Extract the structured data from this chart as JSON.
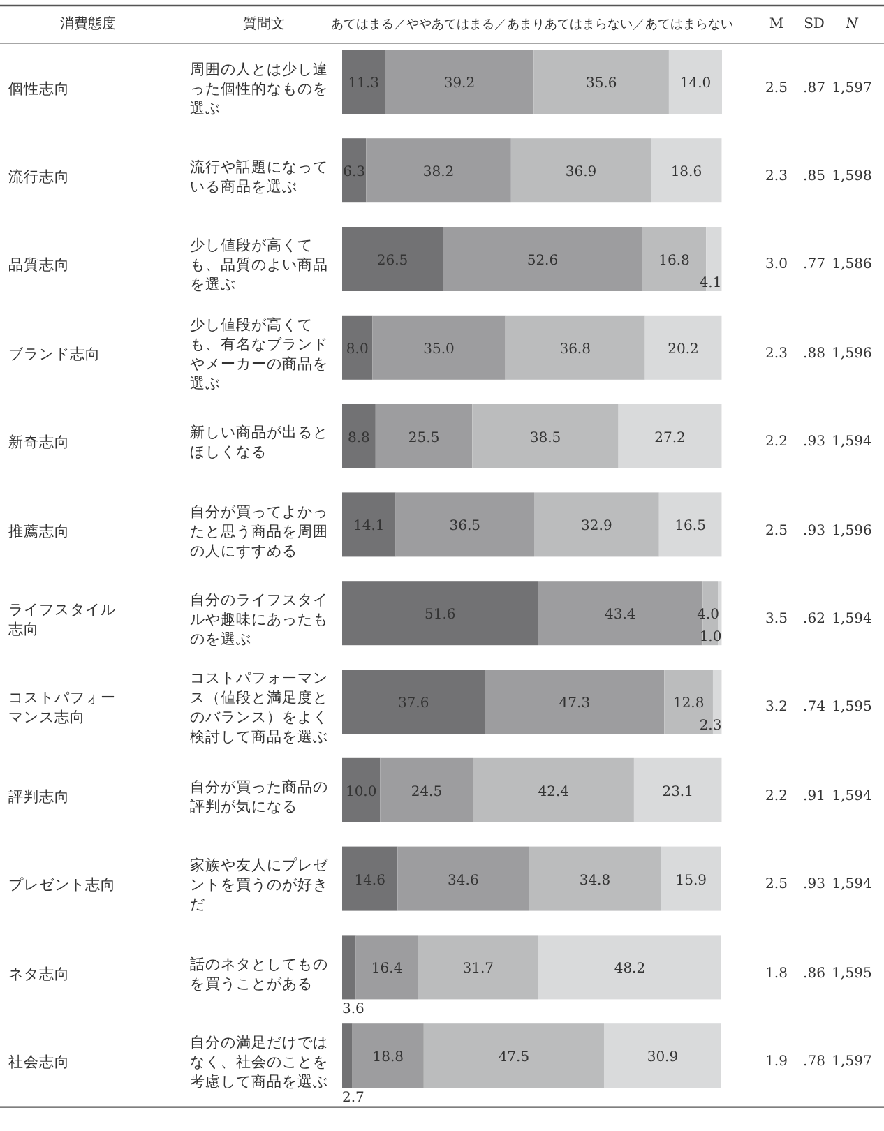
{
  "chart_data": {
    "type": "bar",
    "orientation": "horizontal",
    "stacked": true,
    "ylabel": "消費態度",
    "xlabel": "あてはまる／ややあてはまる／あまりあてはまらない／あてはまらない",
    "xlim": [
      0,
      100.1
    ],
    "categories": [
      "個性志向",
      "流行志向",
      "品質志向",
      "ブランド志向",
      "新奇志向",
      "推薦志向",
      "ライフスタイル志向",
      "コストパフォーマンス志向",
      "評判志向",
      "プレゼント志向",
      "ネタ志向",
      "社会志向"
    ],
    "series": [
      {
        "color": "#727274",
        "values": [
          11.3,
          6.3,
          26.5,
          8.0,
          8.8,
          14.1,
          51.6,
          37.6,
          10.0,
          14.6,
          3.6,
          2.7
        ],
        "value_labels": [
          "11.3",
          "6.3",
          "26.5",
          "8.0",
          "8.8",
          "14.1",
          "51.6",
          "37.6",
          "10.0",
          "14.6",
          "3.6",
          "2.7"
        ]
      },
      {
        "color": "#9d9d9f",
        "values": [
          39.2,
          38.2,
          52.6,
          35.0,
          25.5,
          36.5,
          43.4,
          47.3,
          24.5,
          34.6,
          16.4,
          18.8
        ],
        "value_labels": [
          "39.2",
          "38.2",
          "52.6",
          "35.0",
          "25.5",
          "36.5",
          "43.4",
          "47.3",
          "24.5",
          "34.6",
          "16.4",
          "18.8"
        ]
      },
      {
        "color": "#bbbcbd",
        "values": [
          35.6,
          36.9,
          16.8,
          36.8,
          38.5,
          32.9,
          4.0,
          12.8,
          42.4,
          34.8,
          31.7,
          47.5
        ],
        "value_labels": [
          "35.6",
          "36.9",
          "16.8",
          "36.8",
          "38.5",
          "32.9",
          "4.0",
          "12.8",
          "42.4",
          "34.8",
          "31.7",
          "47.5"
        ]
      },
      {
        "color": "#d9dadb",
        "values": [
          14.0,
          18.6,
          4.1,
          20.2,
          27.2,
          16.5,
          1.0,
          2.3,
          23.1,
          15.9,
          48.2,
          30.9
        ],
        "value_labels": [
          "14.0",
          "18.6",
          "4.1",
          "20.2",
          "27.2",
          "16.5",
          "1.0",
          "2.3",
          "23.1",
          "15.9",
          "48.2",
          "30.9"
        ]
      }
    ],
    "annotations": [
      "質問文",
      "M",
      "SD",
      "N",
      "周囲の人とは少し違った個性的なものを選ぶ",
      "2.5",
      ".87",
      "1,597",
      "流行や話題になっている商品を選ぶ",
      "2.3",
      ".85",
      "1,598",
      "少し値段が高くても、品質のよい商品を選ぶ",
      "3.0",
      ".77",
      "1,586",
      "少し値段が高くても、有名なブランドやメーカーの商品を選ぶ",
      "2.3",
      ".88",
      "1,596",
      "新しい商品が出るとほしくなる",
      "2.2",
      ".93",
      "1,594",
      "自分が買ってよかったと思う商品を周囲の人にすすめる",
      "2.5",
      ".93",
      "1,596",
      "自分のライフスタイルや趣味にあったものを選ぶ",
      "3.5",
      ".62",
      "1,594",
      "コストパフォーマンス（値段と満足度とのバランス）をよく検討して商品を選ぶ",
      "3.2",
      ".74",
      "1,595",
      "自分が買った商品の評判が気になる",
      "2.2",
      ".91",
      "1,594",
      "家族や友人にプレゼントを買うのが好きだ",
      "2.5",
      ".93",
      "1,594",
      "話のネタとしてものを買うことがある",
      "1.8",
      ".86",
      "1,595",
      "自分の満足だけではなく、社会のことを考慮して商品を選ぶ",
      "1.9",
      ".78",
      "1,597"
    ]
  }
}
